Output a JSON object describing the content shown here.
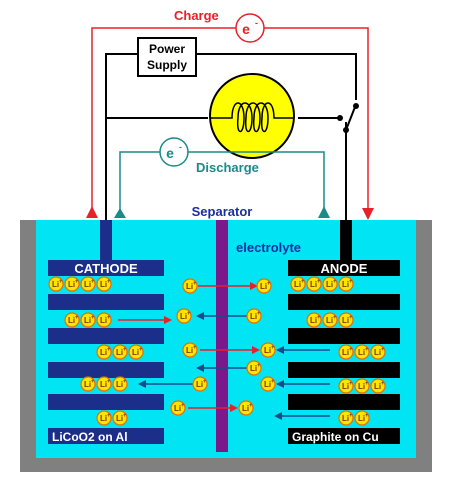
{
  "labels": {
    "charge": "Charge",
    "discharge": "Discharge",
    "electron": "e",
    "electron_sup": "-",
    "power_supply_line1": "Power",
    "power_supply_line2": "Supply",
    "separator": "Separator",
    "electrolyte": "electrolyte",
    "cathode": "CATHODE",
    "anode": "ANODE",
    "cathode_material": "LiCoO2 on Al",
    "anode_material": "Graphite on Cu",
    "ion": "Li",
    "ion_sup": "+"
  },
  "colors": {
    "charge": "#e8202a",
    "discharge": "#1a8a8a",
    "separator_label": "#1a2e9e",
    "electrolyte_label": "#1a2e9e",
    "electrolyte": "#00e4f4",
    "container": "#808080",
    "cathode_plate": "#1a2e8a",
    "anode_plate": "#000000",
    "separator": "#7a1a8a",
    "ion_fill": "#ffe400",
    "ion_stroke": "#e07000",
    "lamp_fill": "#ffff00",
    "wire": "#000000"
  },
  "icons": {
    "lamp": "lightbulb-icon",
    "switch": "switch-icon"
  }
}
